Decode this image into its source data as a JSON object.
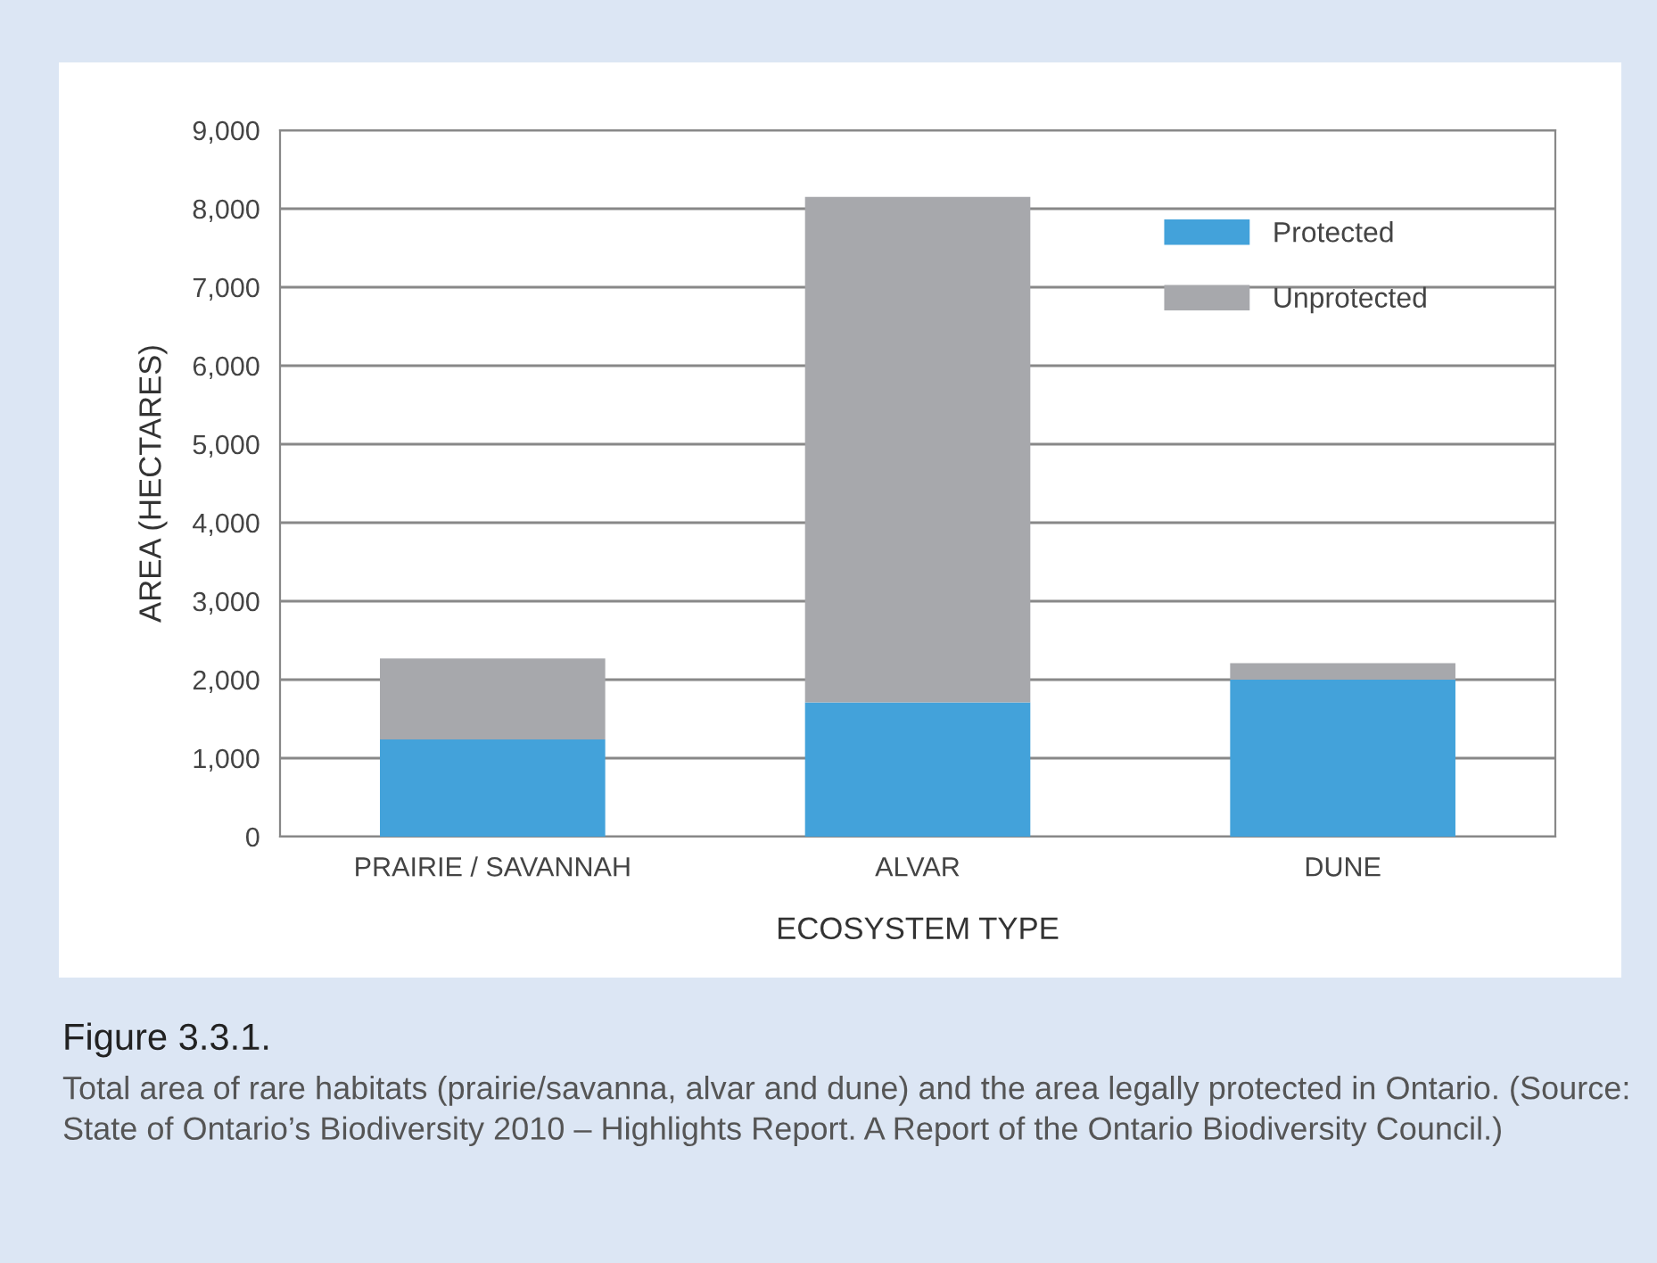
{
  "chart_data": {
    "type": "bar",
    "stacked": true,
    "title": "Figure 3.3.1.",
    "annotations": [
      "Total area of rare habitats (prairie/savanna, alvar and dune) and the area legally protected in Ontario. (Source: State of Ontario’s Biodiversity 2010 – Highlights Report. A Report of the Ontario Biodiversity Council.)"
    ],
    "xlabel": "ECOSYSTEM TYPE",
    "ylabel": "AREA (HECTARES)",
    "categories": [
      "PRAIRIE / SAVANNAH",
      "ALVAR",
      "DUNE"
    ],
    "series": [
      {
        "name": "Protected",
        "color": "#43a2da",
        "values": [
          1240,
          1710,
          2000
        ]
      },
      {
        "name": "Unprotected",
        "color": "#a7a8ac",
        "values": [
          1030,
          6440,
          210
        ]
      }
    ],
    "ylim": [
      0,
      9000
    ],
    "yticks": [
      {
        "value": 0,
        "label": "0"
      },
      {
        "value": 1000,
        "label": "1,000"
      },
      {
        "value": 2000,
        "label": "2,000"
      },
      {
        "value": 3000,
        "label": "3,000"
      },
      {
        "value": 4000,
        "label": "4,000"
      },
      {
        "value": 5000,
        "label": "5,000"
      },
      {
        "value": 6000,
        "label": "6,000"
      },
      {
        "value": 7000,
        "label": "7,000"
      },
      {
        "value": 8000,
        "label": "8,000"
      },
      {
        "value": 9000,
        "label": "9,000"
      }
    ],
    "grid": "y",
    "legend": "top right"
  }
}
